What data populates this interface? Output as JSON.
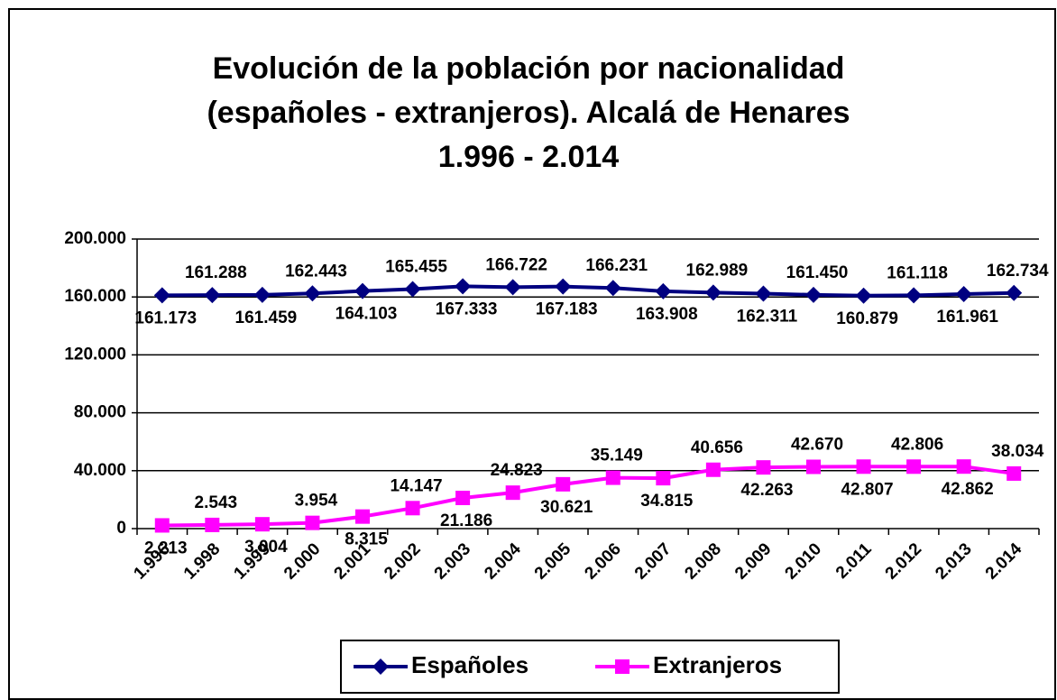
{
  "chart_data": {
    "type": "line",
    "title": [
      "Evolución de la población por nacionalidad",
      "(españoles - extranjeros). Alcalá de Henares",
      "1.996 - 2.014"
    ],
    "categories": [
      "1.996",
      "1.998",
      "1.999",
      "2.000",
      "2.001",
      "2.002",
      "2.003",
      "2.004",
      "2.005",
      "2.006",
      "2.007",
      "2.008",
      "2.009",
      "2.010",
      "2.011",
      "2.012",
      "2.013",
      "2.014"
    ],
    "series": [
      {
        "name": "Españoles",
        "color": "#000080",
        "marker": "diamond",
        "values": [
          161173,
          161288,
          161459,
          162443,
          164103,
          165455,
          167333,
          166722,
          167183,
          166231,
          163908,
          162989,
          162311,
          161450,
          160879,
          161118,
          161961,
          162734
        ],
        "value_labels": [
          "161.173",
          "161.288",
          "161.459",
          "162.443",
          "164.103",
          "165.455",
          "167.333",
          "166.722",
          "167.183",
          "166.231",
          "163.908",
          "162.989",
          "162.311",
          "161.450",
          "160.879",
          "161.118",
          "161.961",
          "162.734"
        ]
      },
      {
        "name": "Extranjeros",
        "color": "#ff00ff",
        "marker": "square",
        "values": [
          2213,
          2543,
          3004,
          3954,
          8315,
          14147,
          21186,
          24823,
          30621,
          35149,
          34815,
          40656,
          42263,
          42670,
          42807,
          42806,
          42862,
          38034
        ],
        "value_labels": [
          "2.213",
          "2.543",
          "3.004",
          "3.954",
          "8.315",
          "14.147",
          "21.186",
          "24.823",
          "30.621",
          "35.149",
          "34.815",
          "40.656",
          "42.263",
          "42.670",
          "42.807",
          "42.806",
          "42.862",
          "38.034"
        ]
      }
    ],
    "ylim": [
      0,
      200000
    ],
    "yticks": [
      0,
      {
        "value": 40000,
        "label": "40.000"
      },
      {
        "value": 80000,
        "label": "80.000"
      },
      {
        "value": 120000,
        "label": "120.000"
      },
      {
        "value": 160000,
        "label": "160.000"
      },
      {
        "value": 200000,
        "label": "200.000"
      }
    ],
    "grid": true,
    "legend": "bottom"
  }
}
